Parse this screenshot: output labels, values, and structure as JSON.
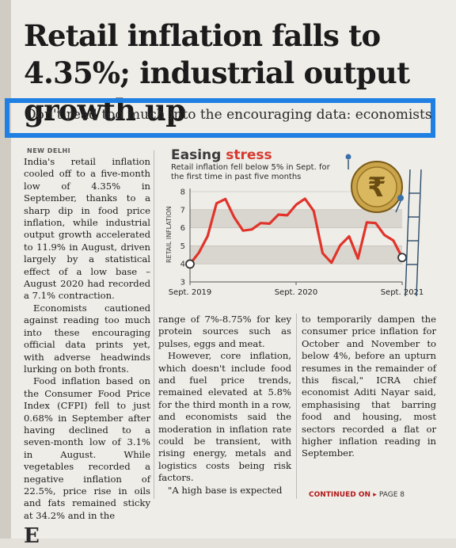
{
  "headline": "Retail inflation falls to 4.35%; industrial output growth up",
  "subhead": "Don't read too much into the encouraging data: economists",
  "dateline": "NEW DELHI",
  "column1": [
    "India's retail inflation cooled off to a five-month low of 4.35% in September, thanks to a sharp dip in food price inflation, while industrial output growth accelerated to 11.9% in August, driven largely by a statistical effect of a low base – August 2020 had recorded a 7.1% contraction.",
    "Economists cautioned against reading too much into these encouraging official data prints yet, with adverse headwinds lurking on both fronts.",
    "Food inflation based on the Consumer Food Price Index (CFPI) fell to just 0.68% in September after having declined to a seven-month low of 3.1% in August. While vegetables recorded a negative inflation of 22.5%, price rise in oils and fats remained sticky at 34.2% and in the"
  ],
  "column2": [
    "range of 7%-8.75% for key protein sources such as pulses, eggs and meat.",
    "However, core inflation, which doesn't include food and fuel price trends, remained elevated at 5.8% for the third month in a row, and economists said the moderation in inflation rate could be transient, with rising energy, metals and logistics costs being risk factors.",
    "\"A high base is expected"
  ],
  "column3": [
    "to temporarily dampen the consumer price inflation for October and November to below 4%, before an upturn resumes in the remainder of this fiscal,\" ICRA chief economist Aditi Nayar said, emphasising that barring food and housing, most sectors recorded a flat or higher inflation reading in September."
  ],
  "continued": {
    "label": "CONTINUED ON",
    "arrow": "▸",
    "page": "PAGE 8"
  },
  "bottom_fragment": "E",
  "chart_data": {
    "type": "line",
    "title_part1": "Easing ",
    "title_part2": "stress",
    "subtitle": "Retail inflation fell below 5% in Sept. for the first time in past five months",
    "ylabel": "RETAIL INFLATION",
    "ylim": [
      3,
      8
    ],
    "yticks": [
      "3",
      "4",
      "5",
      "6",
      "7",
      "8"
    ],
    "xticks": [
      {
        "label": "Sept. 2019",
        "index": 0
      },
      {
        "label": "Sept. 2020",
        "index": 12
      },
      {
        "label": "Sept. 2021",
        "index": 24
      }
    ],
    "values": [
      3.99,
      4.62,
      5.54,
      7.35,
      7.59,
      6.58,
      5.84,
      5.91,
      6.26,
      6.23,
      6.73,
      6.69,
      7.27,
      7.61,
      6.93,
      4.59,
      4.06,
      5.03,
      5.52,
      4.29,
      6.3,
      6.26,
      5.59,
      5.3,
      4.35
    ],
    "line_color": "#e0342b",
    "grid": true,
    "shaded_bands": true
  }
}
